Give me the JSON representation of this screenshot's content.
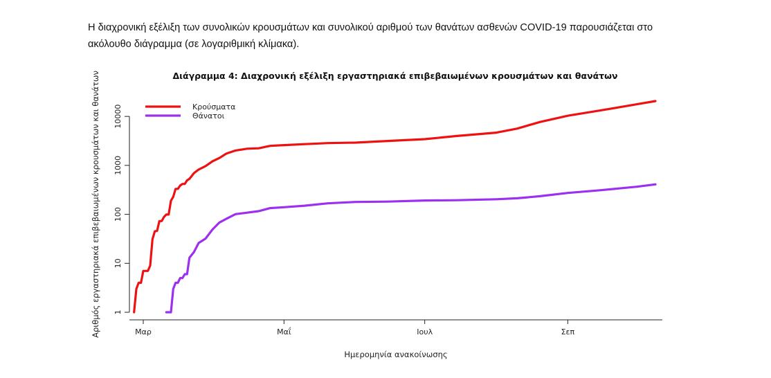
{
  "intro_text": "Η διαχρονική εξέλιξη των συνολικών κρουσμάτων και συνολικού αριθμού των θανάτων ασθενών COVID-19 παρουσιάζεται στο ακόλουθο διάγραμμα (σε λογαριθμική κλίμακα).",
  "chart_data": {
    "type": "line",
    "title": "Διάγραμμα 4: Διαχρονική εξέλιξη εργαστηριακά επιβεβαιωμένων κρουσμάτων και θανάτων",
    "xlabel": "Ημερομηνία ανακοίνωσης",
    "ylabel": "Αριθμός εργαστηριακά επιβεβαιωμένων κρουσμάτων και θανάτων",
    "y_scale": "log",
    "ylim": [
      0.7,
      25000
    ],
    "y_ticks": [
      1,
      10,
      100,
      1000,
      10000
    ],
    "y_tick_labels": [
      "1",
      "10",
      "100",
      "1000",
      "10000"
    ],
    "xlim": [
      "2020-02-24",
      "2020-10-12"
    ],
    "x_ticks": [
      "2020-03-01",
      "2020-05-01",
      "2020-07-01",
      "2020-09-01"
    ],
    "x_tick_labels": [
      "Μαρ",
      "Μαΐ",
      "Ιουλ",
      "Σεπ"
    ],
    "legend_position": "top-left",
    "grid": false,
    "series": [
      {
        "name": "Κρούσματα",
        "color": "#ee1111",
        "x": [
          "2020-02-26",
          "2020-02-27",
          "2020-02-28",
          "2020-02-29",
          "2020-03-01",
          "2020-03-02",
          "2020-03-03",
          "2020-03-04",
          "2020-03-05",
          "2020-03-06",
          "2020-03-07",
          "2020-03-08",
          "2020-03-09",
          "2020-03-10",
          "2020-03-11",
          "2020-03-12",
          "2020-03-13",
          "2020-03-14",
          "2020-03-15",
          "2020-03-16",
          "2020-03-17",
          "2020-03-18",
          "2020-03-19",
          "2020-03-20",
          "2020-03-21",
          "2020-03-23",
          "2020-03-25",
          "2020-03-28",
          "2020-03-31",
          "2020-04-03",
          "2020-04-06",
          "2020-04-10",
          "2020-04-15",
          "2020-04-20",
          "2020-04-25",
          "2020-05-01",
          "2020-05-10",
          "2020-05-20",
          "2020-06-01",
          "2020-06-15",
          "2020-07-01",
          "2020-07-15",
          "2020-08-01",
          "2020-08-10",
          "2020-08-20",
          "2020-09-01",
          "2020-09-15",
          "2020-10-01",
          "2020-10-09"
        ],
        "values": [
          1,
          3,
          4,
          4,
          7,
          7,
          7,
          9,
          31,
          45,
          46,
          73,
          73,
          89,
          99,
          99,
          190,
          228,
          331,
          331,
          387,
          418,
          418,
          495,
          530,
          695,
          821,
          966,
          1212,
          1415,
          1735,
          2011,
          2192,
          2235,
          2506,
          2591,
          2710,
          2850,
          2918,
          3148,
          3432,
          3983,
          4662,
          5623,
          7684,
          10317,
          13224,
          17707,
          20541
        ]
      },
      {
        "name": "Θάνατοι",
        "color": "#9b30f0",
        "x": [
          "2020-03-11",
          "2020-03-12",
          "2020-03-13",
          "2020-03-14",
          "2020-03-15",
          "2020-03-16",
          "2020-03-17",
          "2020-03-18",
          "2020-03-19",
          "2020-03-20",
          "2020-03-21",
          "2020-03-23",
          "2020-03-25",
          "2020-03-28",
          "2020-03-31",
          "2020-04-03",
          "2020-04-06",
          "2020-04-10",
          "2020-04-15",
          "2020-04-20",
          "2020-04-25",
          "2020-05-01",
          "2020-05-10",
          "2020-05-20",
          "2020-06-01",
          "2020-06-15",
          "2020-07-01",
          "2020-07-15",
          "2020-08-01",
          "2020-08-10",
          "2020-08-20",
          "2020-09-01",
          "2020-09-15",
          "2020-10-01",
          "2020-10-09"
        ],
        "values": [
          1,
          1,
          1,
          3,
          4,
          4,
          5,
          5,
          6,
          6,
          13,
          17,
          26,
          32,
          49,
          68,
          81,
          101,
          108,
          116,
          134,
          140,
          150,
          168,
          179,
          182,
          192,
          194,
          203,
          213,
          235,
          273,
          310,
          366,
          409
        ]
      }
    ]
  }
}
